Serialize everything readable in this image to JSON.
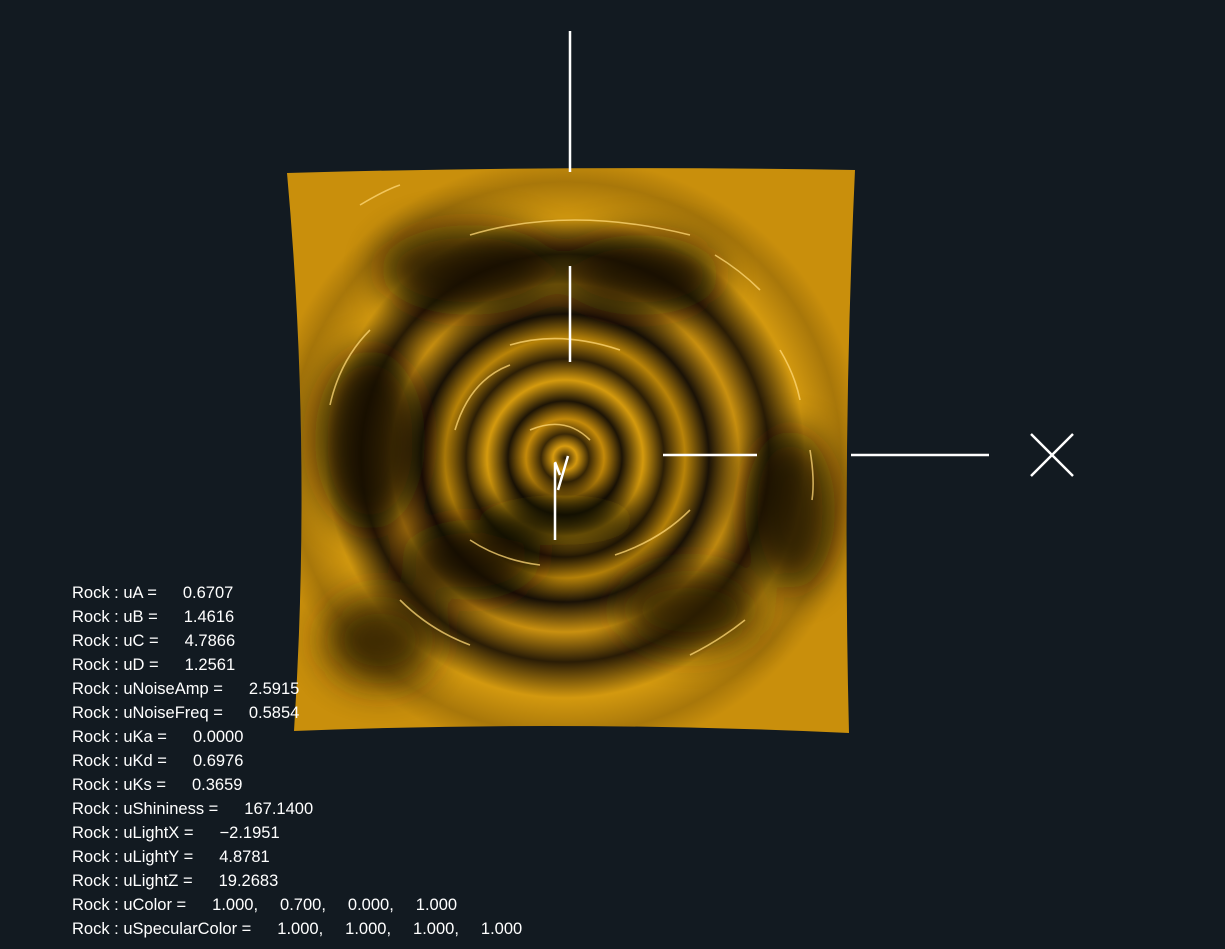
{
  "scene": {
    "colors": {
      "background": "#121a21",
      "surface": "#c28b0a",
      "surface_dark": "#1a1208",
      "axes": "#ffffff"
    },
    "axis_x_label": "X"
  },
  "uniforms": [
    {
      "label": "Rock : uA =",
      "values": [
        "0.6707"
      ]
    },
    {
      "label": "Rock : uB =",
      "values": [
        "1.4616"
      ]
    },
    {
      "label": "Rock : uC =",
      "values": [
        "4.7866"
      ]
    },
    {
      "label": "Rock : uD =",
      "values": [
        "1.2561"
      ]
    },
    {
      "label": "Rock : uNoiseAmp =",
      "values": [
        "2.5915"
      ]
    },
    {
      "label": "Rock : uNoiseFreq =",
      "values": [
        "0.5854"
      ]
    },
    {
      "label": "Rock : uKa =",
      "values": [
        "0.0000"
      ]
    },
    {
      "label": "Rock : uKd =",
      "values": [
        "0.6976"
      ]
    },
    {
      "label": "Rock : uKs =",
      "values": [
        "0.3659"
      ]
    },
    {
      "label": "Rock : uShininess =",
      "values": [
        "167.1400"
      ]
    },
    {
      "label": "Rock : uLightX =",
      "values": [
        "−2.1951"
      ]
    },
    {
      "label": "Rock : uLightY =",
      "values": [
        "4.8781"
      ]
    },
    {
      "label": "Rock : uLightZ =",
      "values": [
        "19.2683"
      ]
    },
    {
      "label": "Rock : uColor =",
      "values": [
        "1.000,",
        "0.700,",
        "0.000,",
        "1.000"
      ]
    },
    {
      "label": "Rock : uSpecularColor =",
      "values": [
        "1.000,",
        "1.000,",
        "1.000,",
        "1.000"
      ]
    }
  ]
}
